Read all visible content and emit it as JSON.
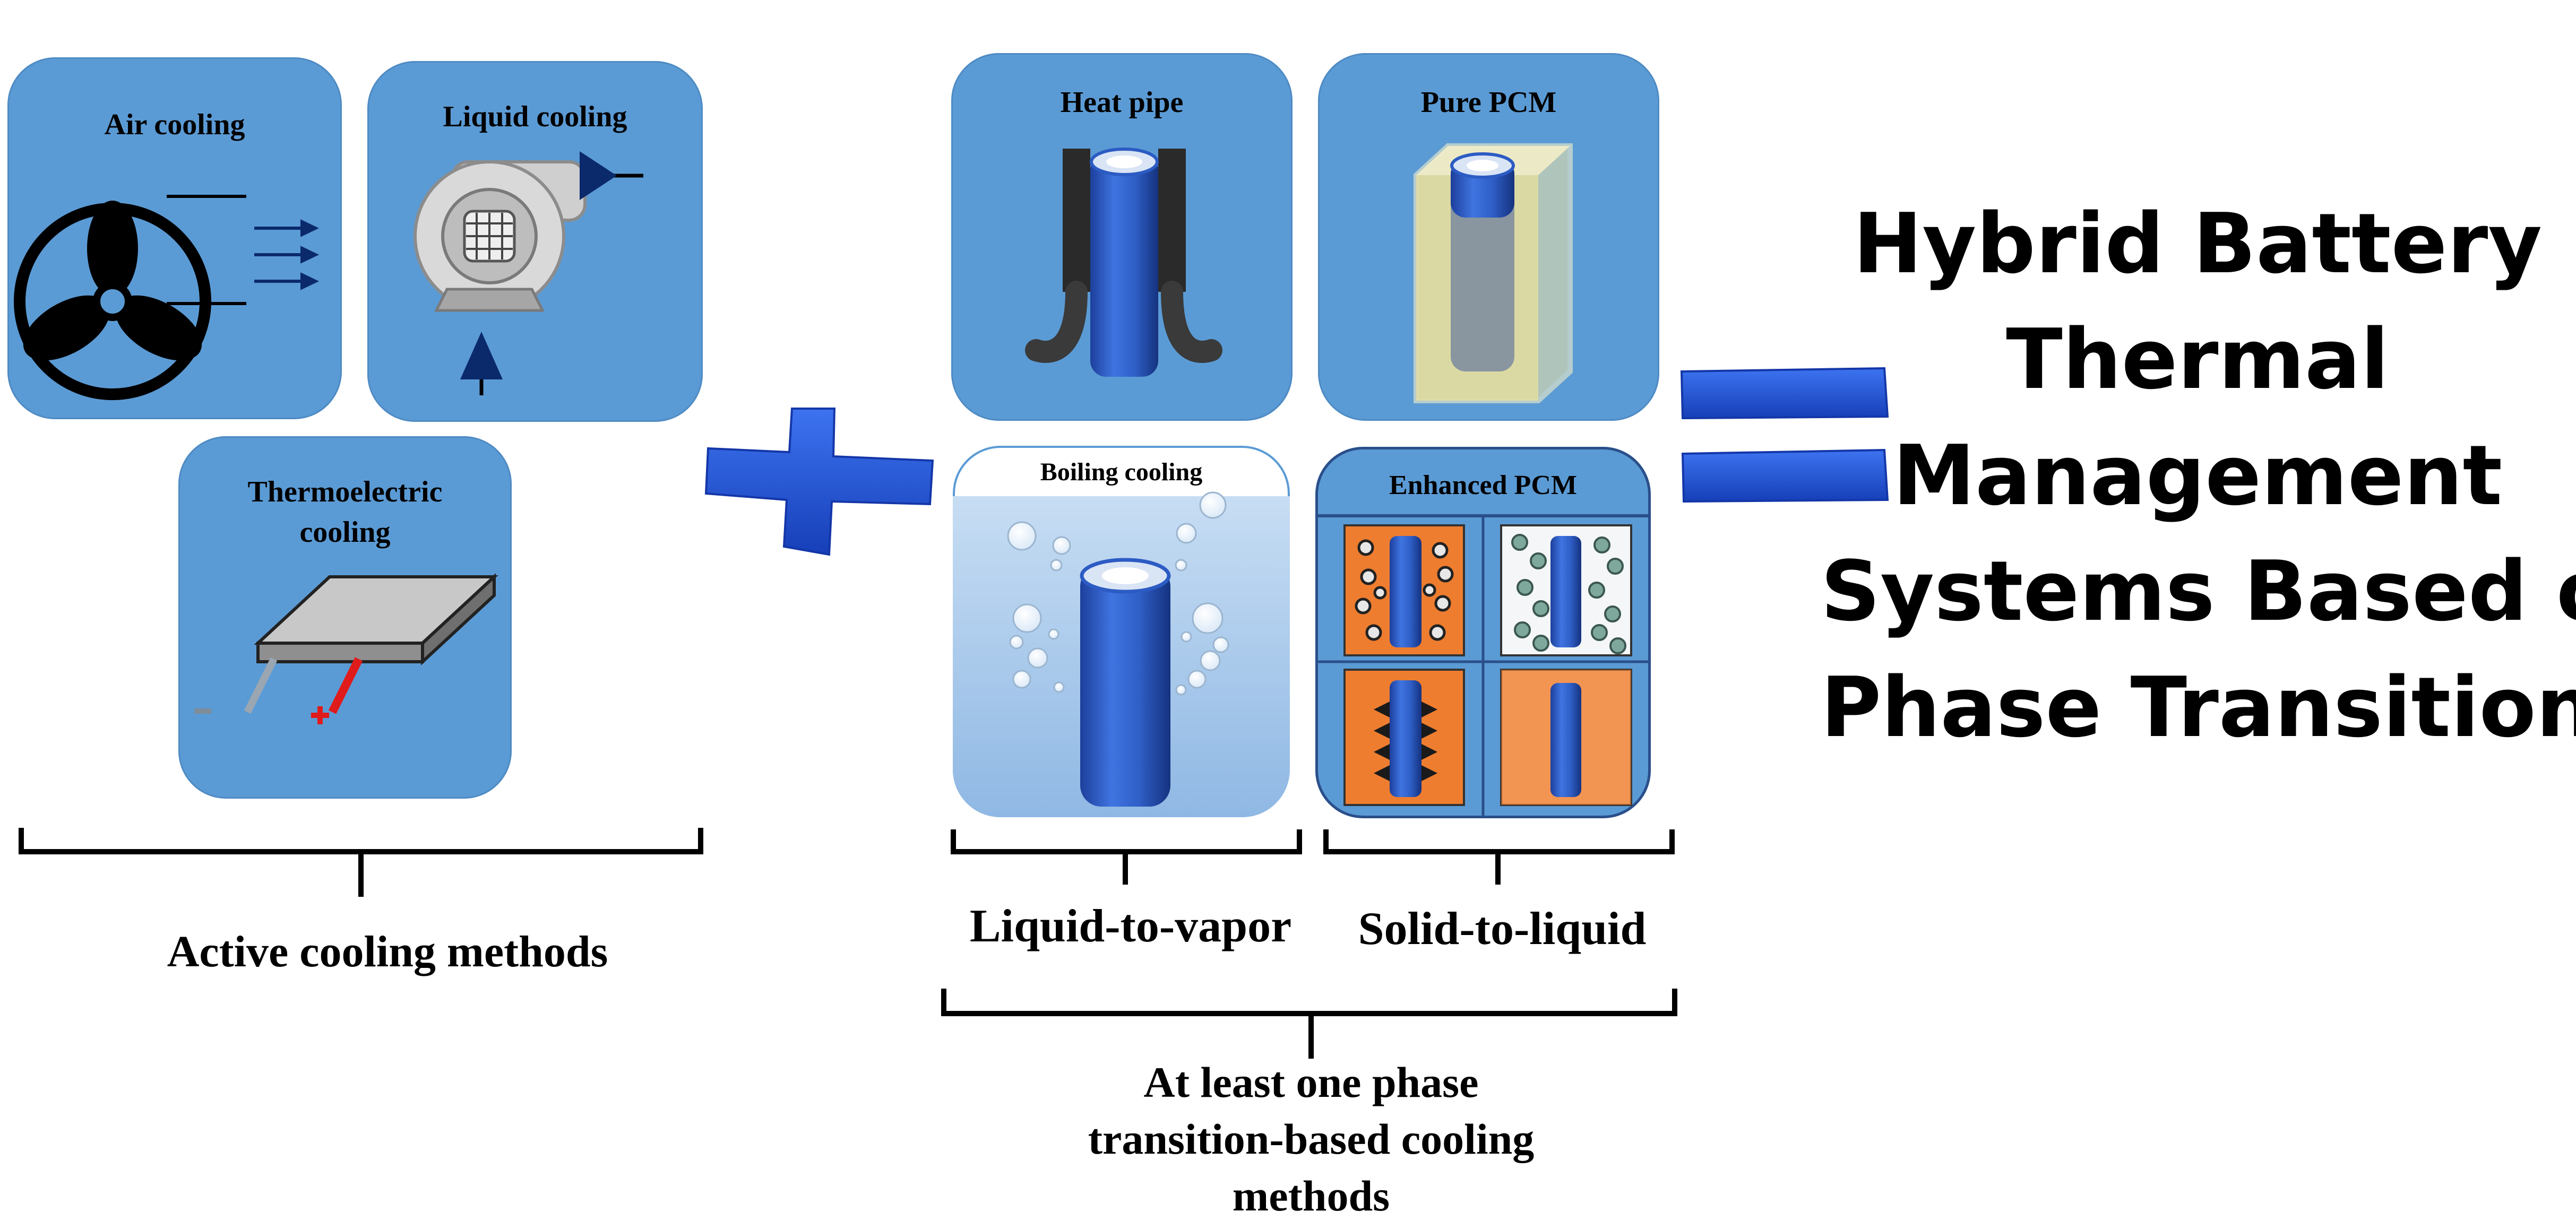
{
  "active_methods": {
    "air_cooling": "Air cooling",
    "liquid_cooling": "Liquid cooling",
    "thermoelectric_line1": "Thermoelectric",
    "thermoelectric_line2": "cooling",
    "group_label": "Active cooling methods"
  },
  "phase_methods": {
    "heat_pipe": "Heat pipe",
    "pure_pcm": "Pure PCM",
    "boiling_cooling": "Boiling cooling",
    "enhanced_pcm": "Enhanced PCM",
    "liquid_to_vapor": "Liquid-to-vapor",
    "solid_to_liquid": "Solid-to-liquid",
    "group_label_line1": "At least one phase",
    "group_label_line2": "transition-based cooling",
    "group_label_line3": "methods"
  },
  "operators": {
    "plus": "+",
    "equals": "="
  },
  "result_title": {
    "line1": "Hybrid Battery",
    "line2": "Thermal",
    "line3": "Management",
    "line4": "Systems Based on",
    "line5": "Phase Transition"
  },
  "colors": {
    "card_blue": "#5b9bd5",
    "operator_blue": "#1f4fd6",
    "battery_blue": "#2f5fc7",
    "orange_pcm": "#ee7d2f",
    "navy_arrow": "#0b2a6b"
  }
}
